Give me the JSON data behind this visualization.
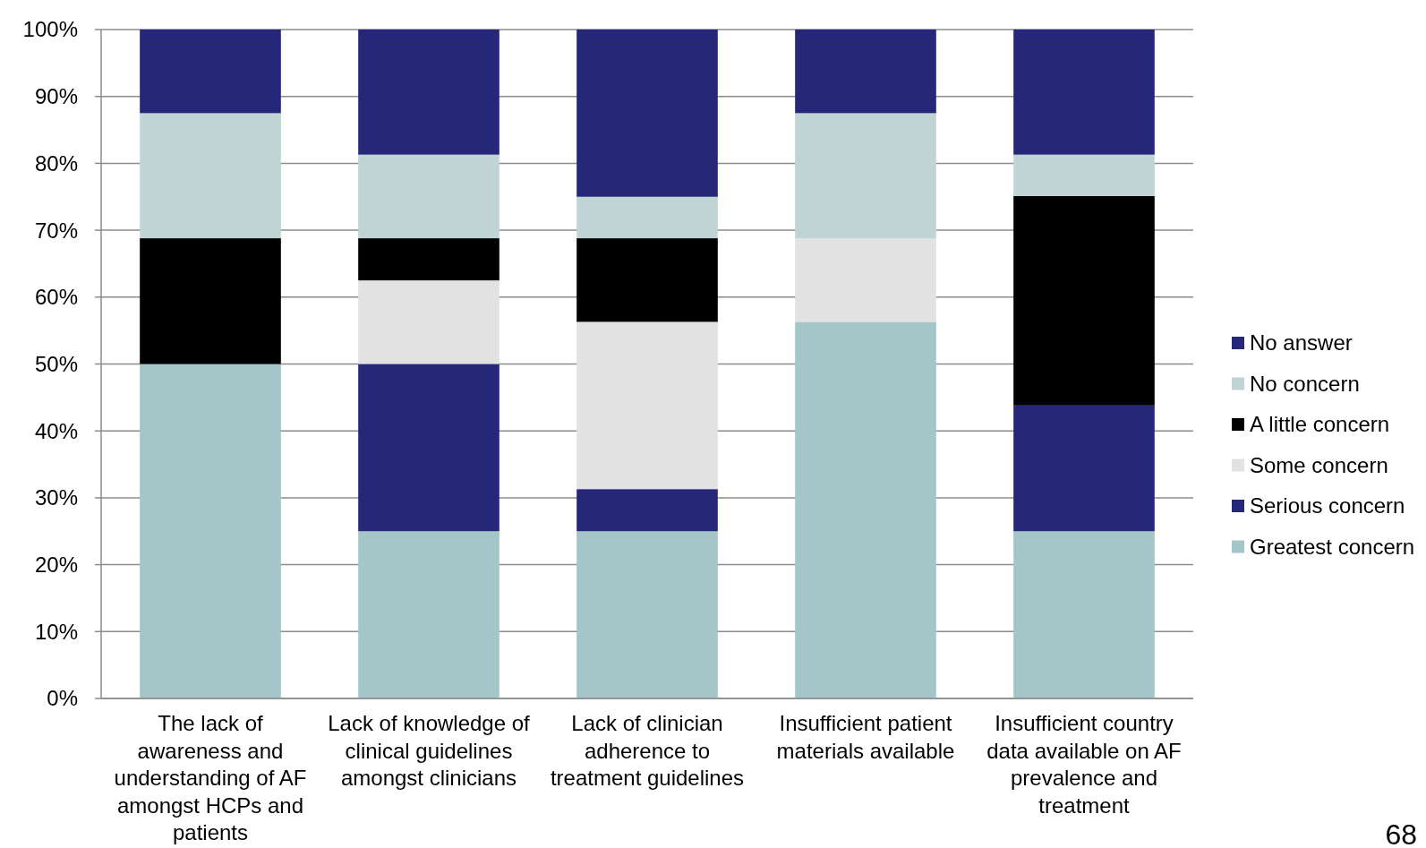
{
  "chart_data": {
    "type": "bar",
    "stacked": true,
    "categories": [
      "The lack of awareness and understanding of AF amongst HCPs and patients",
      "Lack of knowledge of clinical guidelines amongst clinicians",
      "Lack of clinician adherence to treatment guidelines",
      "Insufficient patient materials available",
      "Insufficient country data available on AF prevalence and treatment"
    ],
    "series": [
      {
        "name": "Greatest concern",
        "color": "#a5c6c9",
        "values": [
          50,
          25,
          25,
          56.3,
          25
        ]
      },
      {
        "name": "Serious concern",
        "color": "#27277a",
        "values": [
          0,
          25,
          6.3,
          0,
          18.8
        ]
      },
      {
        "name": "Some concern",
        "color": "#e2e2e2",
        "values": [
          0,
          12.5,
          25,
          12.5,
          0
        ]
      },
      {
        "name": "A little concern",
        "color": "#000000",
        "values": [
          18.8,
          6.3,
          12.5,
          0,
          31.3
        ]
      },
      {
        "name": "No concern",
        "color": "#c0d4d6",
        "values": [
          18.7,
          12.5,
          6.2,
          18.7,
          6.2
        ]
      },
      {
        "name": "No answer",
        "color": "#27277a",
        "values": [
          12.5,
          18.7,
          25,
          12.5,
          18.7
        ]
      }
    ],
    "ylim": [
      0,
      100
    ],
    "yticks": [
      {
        "value": 0,
        "label": "0%"
      },
      {
        "value": 10,
        "label": "10%"
      },
      {
        "value": 20,
        "label": "20%"
      },
      {
        "value": 30,
        "label": "30%"
      },
      {
        "value": 40,
        "label": "40%"
      },
      {
        "value": 50,
        "label": "50%"
      },
      {
        "value": 60,
        "label": "60%"
      },
      {
        "value": 70,
        "label": "70%"
      },
      {
        "value": 80,
        "label": "80%"
      },
      {
        "value": 90,
        "label": "90%"
      },
      {
        "value": 100,
        "label": "100%"
      }
    ],
    "grid": "y",
    "legend": "right",
    "annotations": [
      "68"
    ]
  }
}
